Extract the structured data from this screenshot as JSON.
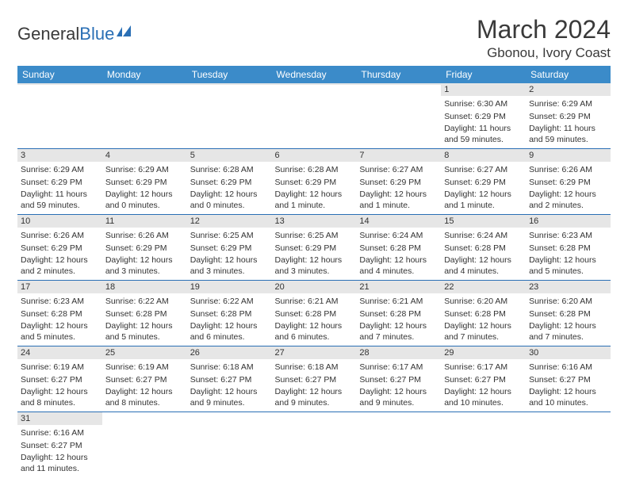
{
  "header": {
    "logo_general": "General",
    "logo_blue": "Blue",
    "month_title": "March 2024",
    "location": "Gbonou, Ivory Coast"
  },
  "colors": {
    "header_bg": "#3b8bc9",
    "header_text": "#ffffff",
    "daynum_bg": "#e6e6e6",
    "row_border": "#2a6fb5",
    "logo_blue": "#2a6fb5",
    "text": "#333333"
  },
  "weekdays": [
    "Sunday",
    "Monday",
    "Tuesday",
    "Wednesday",
    "Thursday",
    "Friday",
    "Saturday"
  ],
  "weeks": [
    [
      null,
      null,
      null,
      null,
      null,
      {
        "n": "1",
        "sunrise": "Sunrise: 6:30 AM",
        "sunset": "Sunset: 6:29 PM",
        "daylight": "Daylight: 11 hours and 59 minutes."
      },
      {
        "n": "2",
        "sunrise": "Sunrise: 6:29 AM",
        "sunset": "Sunset: 6:29 PM",
        "daylight": "Daylight: 11 hours and 59 minutes."
      }
    ],
    [
      {
        "n": "3",
        "sunrise": "Sunrise: 6:29 AM",
        "sunset": "Sunset: 6:29 PM",
        "daylight": "Daylight: 11 hours and 59 minutes."
      },
      {
        "n": "4",
        "sunrise": "Sunrise: 6:29 AM",
        "sunset": "Sunset: 6:29 PM",
        "daylight": "Daylight: 12 hours and 0 minutes."
      },
      {
        "n": "5",
        "sunrise": "Sunrise: 6:28 AM",
        "sunset": "Sunset: 6:29 PM",
        "daylight": "Daylight: 12 hours and 0 minutes."
      },
      {
        "n": "6",
        "sunrise": "Sunrise: 6:28 AM",
        "sunset": "Sunset: 6:29 PM",
        "daylight": "Daylight: 12 hours and 1 minute."
      },
      {
        "n": "7",
        "sunrise": "Sunrise: 6:27 AM",
        "sunset": "Sunset: 6:29 PM",
        "daylight": "Daylight: 12 hours and 1 minute."
      },
      {
        "n": "8",
        "sunrise": "Sunrise: 6:27 AM",
        "sunset": "Sunset: 6:29 PM",
        "daylight": "Daylight: 12 hours and 1 minute."
      },
      {
        "n": "9",
        "sunrise": "Sunrise: 6:26 AM",
        "sunset": "Sunset: 6:29 PM",
        "daylight": "Daylight: 12 hours and 2 minutes."
      }
    ],
    [
      {
        "n": "10",
        "sunrise": "Sunrise: 6:26 AM",
        "sunset": "Sunset: 6:29 PM",
        "daylight": "Daylight: 12 hours and 2 minutes."
      },
      {
        "n": "11",
        "sunrise": "Sunrise: 6:26 AM",
        "sunset": "Sunset: 6:29 PM",
        "daylight": "Daylight: 12 hours and 3 minutes."
      },
      {
        "n": "12",
        "sunrise": "Sunrise: 6:25 AM",
        "sunset": "Sunset: 6:29 PM",
        "daylight": "Daylight: 12 hours and 3 minutes."
      },
      {
        "n": "13",
        "sunrise": "Sunrise: 6:25 AM",
        "sunset": "Sunset: 6:29 PM",
        "daylight": "Daylight: 12 hours and 3 minutes."
      },
      {
        "n": "14",
        "sunrise": "Sunrise: 6:24 AM",
        "sunset": "Sunset: 6:28 PM",
        "daylight": "Daylight: 12 hours and 4 minutes."
      },
      {
        "n": "15",
        "sunrise": "Sunrise: 6:24 AM",
        "sunset": "Sunset: 6:28 PM",
        "daylight": "Daylight: 12 hours and 4 minutes."
      },
      {
        "n": "16",
        "sunrise": "Sunrise: 6:23 AM",
        "sunset": "Sunset: 6:28 PM",
        "daylight": "Daylight: 12 hours and 5 minutes."
      }
    ],
    [
      {
        "n": "17",
        "sunrise": "Sunrise: 6:23 AM",
        "sunset": "Sunset: 6:28 PM",
        "daylight": "Daylight: 12 hours and 5 minutes."
      },
      {
        "n": "18",
        "sunrise": "Sunrise: 6:22 AM",
        "sunset": "Sunset: 6:28 PM",
        "daylight": "Daylight: 12 hours and 5 minutes."
      },
      {
        "n": "19",
        "sunrise": "Sunrise: 6:22 AM",
        "sunset": "Sunset: 6:28 PM",
        "daylight": "Daylight: 12 hours and 6 minutes."
      },
      {
        "n": "20",
        "sunrise": "Sunrise: 6:21 AM",
        "sunset": "Sunset: 6:28 PM",
        "daylight": "Daylight: 12 hours and 6 minutes."
      },
      {
        "n": "21",
        "sunrise": "Sunrise: 6:21 AM",
        "sunset": "Sunset: 6:28 PM",
        "daylight": "Daylight: 12 hours and 7 minutes."
      },
      {
        "n": "22",
        "sunrise": "Sunrise: 6:20 AM",
        "sunset": "Sunset: 6:28 PM",
        "daylight": "Daylight: 12 hours and 7 minutes."
      },
      {
        "n": "23",
        "sunrise": "Sunrise: 6:20 AM",
        "sunset": "Sunset: 6:28 PM",
        "daylight": "Daylight: 12 hours and 7 minutes."
      }
    ],
    [
      {
        "n": "24",
        "sunrise": "Sunrise: 6:19 AM",
        "sunset": "Sunset: 6:27 PM",
        "daylight": "Daylight: 12 hours and 8 minutes."
      },
      {
        "n": "25",
        "sunrise": "Sunrise: 6:19 AM",
        "sunset": "Sunset: 6:27 PM",
        "daylight": "Daylight: 12 hours and 8 minutes."
      },
      {
        "n": "26",
        "sunrise": "Sunrise: 6:18 AM",
        "sunset": "Sunset: 6:27 PM",
        "daylight": "Daylight: 12 hours and 9 minutes."
      },
      {
        "n": "27",
        "sunrise": "Sunrise: 6:18 AM",
        "sunset": "Sunset: 6:27 PM",
        "daylight": "Daylight: 12 hours and 9 minutes."
      },
      {
        "n": "28",
        "sunrise": "Sunrise: 6:17 AM",
        "sunset": "Sunset: 6:27 PM",
        "daylight": "Daylight: 12 hours and 9 minutes."
      },
      {
        "n": "29",
        "sunrise": "Sunrise: 6:17 AM",
        "sunset": "Sunset: 6:27 PM",
        "daylight": "Daylight: 12 hours and 10 minutes."
      },
      {
        "n": "30",
        "sunrise": "Sunrise: 6:16 AM",
        "sunset": "Sunset: 6:27 PM",
        "daylight": "Daylight: 12 hours and 10 minutes."
      }
    ],
    [
      {
        "n": "31",
        "sunrise": "Sunrise: 6:16 AM",
        "sunset": "Sunset: 6:27 PM",
        "daylight": "Daylight: 12 hours and 11 minutes."
      },
      null,
      null,
      null,
      null,
      null,
      null
    ]
  ]
}
